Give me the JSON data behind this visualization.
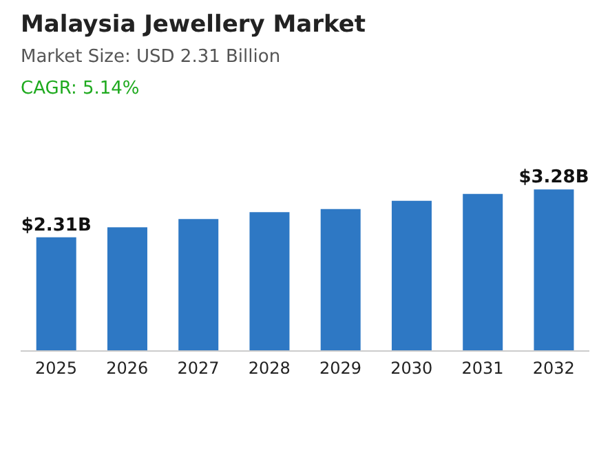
{
  "chart_data": {
    "type": "bar",
    "title": "Malaysia Jewellery Market",
    "subtitle": "Market Size: USD 2.31 Billion",
    "annotations": [
      "CAGR: 5.14%"
    ],
    "categories": [
      "2025",
      "2026",
      "2027",
      "2028",
      "2029",
      "2030",
      "2031",
      "2032"
    ],
    "values": [
      2.31,
      2.51,
      2.68,
      2.82,
      2.88,
      3.05,
      3.19,
      3.28
    ],
    "value_labels": [
      "$2.31B",
      null,
      null,
      null,
      null,
      null,
      null,
      "$3.28B"
    ],
    "color": "#2e78c4",
    "tick_labels": "x"
  }
}
